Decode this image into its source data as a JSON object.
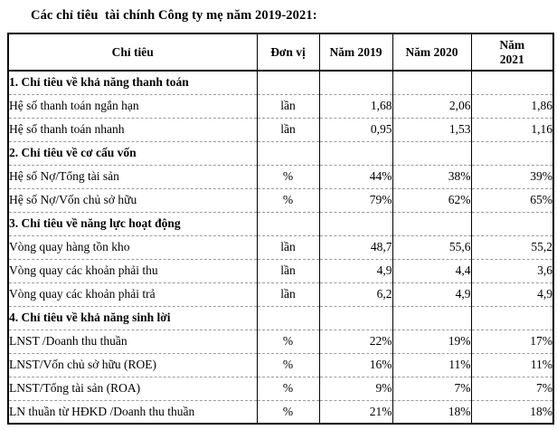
{
  "title": "Các chỉ tiêu  tài chính Công ty mẹ năm 2019-2021:",
  "table": {
    "columns": [
      "Chỉ tiêu",
      "Đơn vị",
      "Năm 2019",
      "Năm 2020",
      "Năm 2021"
    ],
    "sections": [
      {
        "header": "1. Chỉ tiêu về khả năng thanh toán",
        "rows": [
          {
            "cells": [
              "Hệ số thanh toán ngắn hạn",
              "lần",
              "1,68",
              "2,06",
              "1,86"
            ]
          },
          {
            "cells": [
              "Hệ số thanh toán nhanh",
              "lần",
              "0,95",
              "1,53",
              "1,16"
            ]
          }
        ]
      },
      {
        "header": "2. Chỉ tiêu về cơ cấu vốn",
        "rows": [
          {
            "cells": [
              "Hệ số Nợ/Tổng tài sản",
              "%",
              "44%",
              "38%",
              "39%"
            ]
          },
          {
            "cells": [
              "Hệ số Nợ/Vốn chủ sở hữu",
              "%",
              "79%",
              "62%",
              "65%"
            ]
          }
        ]
      },
      {
        "header": "3. Chỉ tiêu về năng lực hoạt động",
        "rows": [
          {
            "cells": [
              "Vòng quay hàng tồn kho",
              "lần",
              "48,7",
              "55,6",
              "55,2"
            ]
          },
          {
            "cells": [
              "Vòng quay các khoản phải thu",
              "lần",
              "4,9",
              "4,4",
              "3,6"
            ]
          },
          {
            "cells": [
              "Vòng quay các khoản phải trả",
              "lần",
              "6,2",
              "4,9",
              "4,9"
            ]
          }
        ]
      },
      {
        "header": "4. Chỉ tiêu về khả năng sinh lời",
        "rows": [
          {
            "cells": [
              "LNST /Doanh thu thuần",
              "%",
              "22%",
              "19%",
              "17%"
            ]
          },
          {
            "cells": [
              "LNST/Vốn chủ sở hữu (ROE)",
              "%",
              "16%",
              "11%",
              "11%"
            ]
          },
          {
            "cells": [
              "LNST/Tổng tài sản (ROA)",
              "%",
              "9%",
              "7%",
              "7%"
            ]
          },
          {
            "cells": [
              "LN thuần từ HĐKD /Doanh thu thuần",
              "%",
              "21%",
              "18%",
              "18%"
            ]
          }
        ]
      }
    ]
  },
  "colors": {
    "text": "#000000",
    "background": "#ffffff",
    "table_border": "#000000",
    "row_divider": "#9b9b9b"
  }
}
